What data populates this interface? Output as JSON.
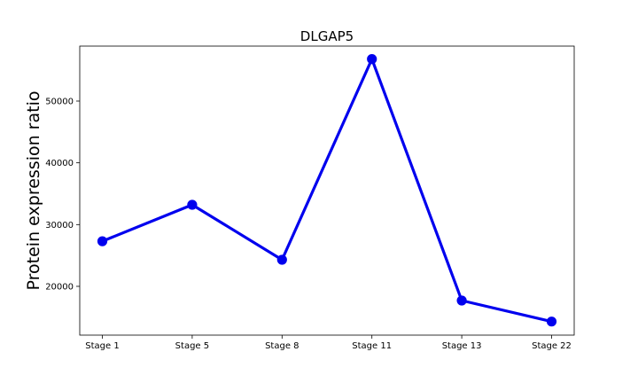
{
  "chart_data": {
    "type": "line",
    "title": "DLGAP5",
    "xlabel": "",
    "ylabel": "Protein expression ratio",
    "categories": [
      "Stage 1",
      "Stage 5",
      "Stage 8",
      "Stage 11",
      "Stage 13",
      "Stage 22"
    ],
    "series": [
      {
        "values": [
          27300,
          33200,
          24300,
          56800,
          17700,
          14300
        ],
        "color": "#0000ee",
        "marker": "circle"
      }
    ],
    "yticks": [
      20000,
      30000,
      40000,
      50000
    ],
    "ylim": [
      12100,
      58900
    ],
    "grid": false,
    "legend": "none"
  }
}
